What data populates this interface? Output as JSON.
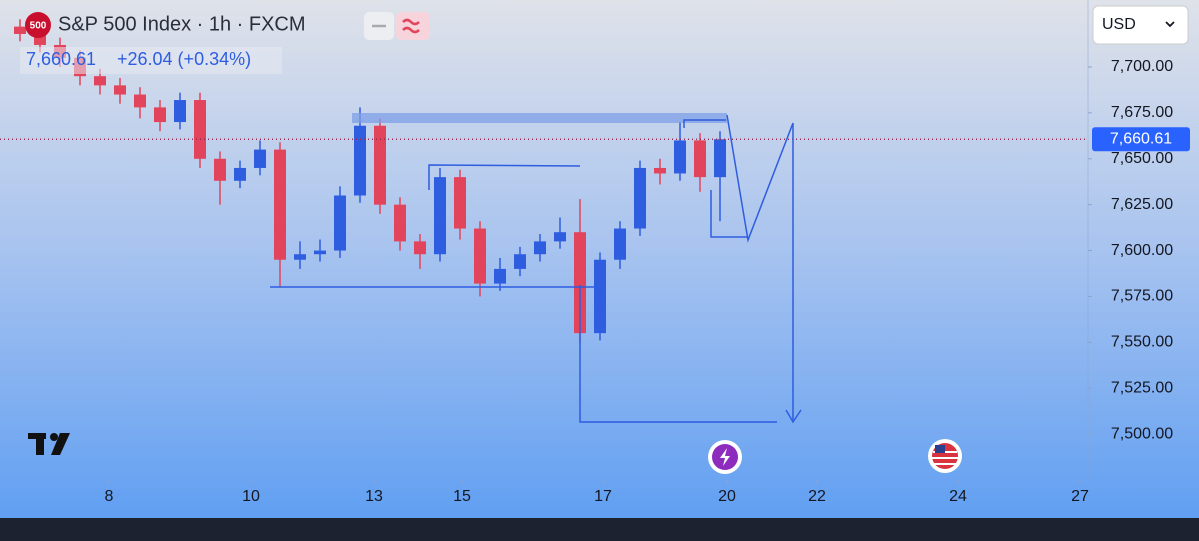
{
  "header": {
    "badge": "500",
    "title": "S&P 500 Index · 1h · FXCM",
    "last": "7,660.61",
    "change": "+26.04 (+0.34%)",
    "currency": "USD"
  },
  "chart_data": {
    "type": "candlestick",
    "x": [
      2,
      4,
      6,
      8,
      10,
      12,
      14,
      16,
      18,
      20,
      22,
      24,
      26,
      28,
      30,
      32,
      34,
      36,
      38,
      40,
      42,
      44,
      46,
      48,
      50,
      52,
      54,
      56,
      58,
      60,
      62,
      64,
      66,
      68,
      70,
      72
    ],
    "open": [
      7722,
      7718,
      7712,
      7705,
      7695,
      7690,
      7685,
      7678,
      7670,
      7682,
      7650,
      7638,
      7645,
      7655,
      7595,
      7598,
      7600,
      7630,
      7668,
      7625,
      7605,
      7598,
      7640,
      7612,
      7582,
      7590,
      7598,
      7605,
      7610,
      7555,
      7595,
      7612,
      7645,
      7642,
      7660,
      7640
    ],
    "high": [
      7726,
      7722,
      7716,
      7709,
      7699,
      7694,
      7689,
      7682,
      7686,
      7686,
      7654,
      7649,
      7660,
      7659,
      7605,
      7606,
      7635,
      7678,
      7672,
      7629,
      7609,
      7645,
      7644,
      7616,
      7596,
      7602,
      7609,
      7618,
      7628,
      7599,
      7616,
      7649,
      7650,
      7670,
      7664,
      7665
    ],
    "low": [
      7714,
      7708,
      7700,
      7690,
      7685,
      7680,
      7672,
      7665,
      7666,
      7645,
      7625,
      7634,
      7641,
      7580,
      7590,
      7594,
      7596,
      7626,
      7620,
      7600,
      7590,
      7594,
      7606,
      7575,
      7578,
      7586,
      7594,
      7601,
      7550,
      7551,
      7590,
      7608,
      7636,
      7638,
      7632,
      7616
    ],
    "close": [
      7718,
      7712,
      7705,
      7695,
      7690,
      7685,
      7678,
      7670,
      7682,
      7650,
      7638,
      7645,
      7655,
      7595,
      7598,
      7600,
      7630,
      7668,
      7625,
      7605,
      7598,
      7640,
      7612,
      7582,
      7590,
      7598,
      7605,
      7610,
      7555,
      7595,
      7612,
      7645,
      7642,
      7660,
      7640,
      7660.61
    ],
    "up_color": "#2f5de0",
    "down_color": "#e2445c",
    "last_price": {
      "value": 7660.61,
      "label": "7,660.61"
    },
    "xlim": [
      1.2,
      108.5
    ],
    "xticks": [
      {
        "value": 10.9,
        "label": "8"
      },
      {
        "value": 25.1,
        "label": "10"
      },
      {
        "value": 37.4,
        "label": "13"
      },
      {
        "value": 46.2,
        "label": "15"
      },
      {
        "value": 60.3,
        "label": "17"
      },
      {
        "value": 72.7,
        "label": "20"
      },
      {
        "value": 81.7,
        "label": "22"
      },
      {
        "value": 95.8,
        "label": "24"
      },
      {
        "value": 108.0,
        "label": "27"
      }
    ],
    "ylim": [
      7475,
      7736.5
    ],
    "yticks": [
      {
        "value": 7500,
        "label": "7,500.00"
      },
      {
        "value": 7525,
        "label": "7,525.00"
      },
      {
        "value": 7550,
        "label": "7,550.00"
      },
      {
        "value": 7575,
        "label": "7,575.00"
      },
      {
        "value": 7600,
        "label": "7,600.00"
      },
      {
        "value": 7625,
        "label": "7,625.00"
      },
      {
        "value": 7650,
        "label": "7,650.00"
      },
      {
        "value": 7675,
        "label": "7,675.00"
      },
      {
        "value": 7700,
        "label": "7,700.00"
      }
    ]
  }
}
